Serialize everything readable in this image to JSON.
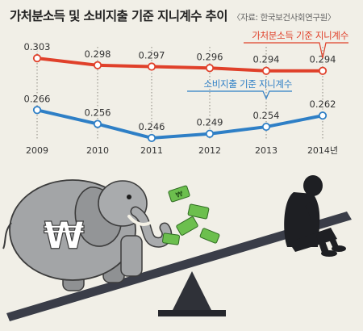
{
  "header": {
    "title": "가처분소득 및 소비지출 기준 지니계수 추이",
    "source": "〈자료: 한국보건사회연구원〉"
  },
  "colors": {
    "disposable": "#e0402a",
    "consumption": "#2e7fc6",
    "background": "#f1efe7"
  },
  "chart_data": {
    "type": "line",
    "categories": [
      "2009",
      "2010",
      "2011",
      "2012",
      "2013",
      "2014년"
    ],
    "series": [
      {
        "name": "가처분소득 기준 지니계수",
        "values": [
          0.303,
          0.298,
          0.297,
          0.296,
          0.294,
          0.294
        ],
        "labels": [
          "0.303",
          "0.298",
          "0.297",
          "0.296",
          "0.294",
          "0.294"
        ],
        "color": "#e0402a"
      },
      {
        "name": "소비지출 기준 지니계수",
        "values": [
          0.266,
          0.256,
          0.246,
          0.249,
          0.254,
          0.262
        ],
        "labels": [
          "0.266",
          "0.256",
          "0.246",
          "0.249",
          "0.254",
          "0.262"
        ],
        "color": "#2e7fc6"
      }
    ],
    "ylim": [
      0.235,
      0.31
    ],
    "title": "가처분소득 및 소비지출 기준 지니계수 추이"
  },
  "illustration": {
    "elephant_symbol": "₩",
    "money_symbol": "₩"
  }
}
